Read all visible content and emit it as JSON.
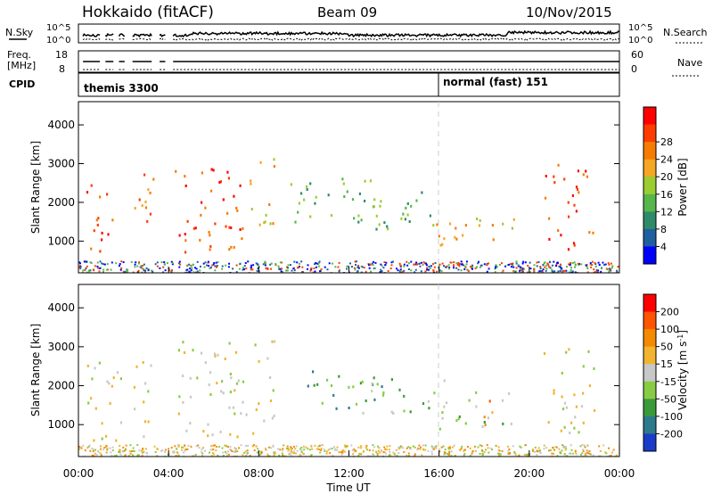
{
  "header": {
    "station": "Hokkaido (fitACF)",
    "beam": "Beam 09",
    "date": "10/Nov/2015"
  },
  "panels": {
    "nsky": {
      "left_label": "N.Sky",
      "right_label": "N.Search",
      "left_ticks": [
        "10^5",
        "10^0"
      ],
      "right_ticks": [
        "10^5",
        "10^0"
      ]
    },
    "freq": {
      "left_label_1": "Freq.",
      "left_label_2": "[MHz]",
      "right_label": "Nave",
      "left_ticks": [
        "18",
        "8"
      ],
      "right_ticks": [
        "60",
        "0"
      ]
    },
    "cpid": {
      "label": "CPID",
      "modes": [
        {
          "name": "themis 3300",
          "start_hour": 0
        },
        {
          "name": "normal (fast) 151",
          "start_hour": 16
        }
      ]
    }
  },
  "chart_data": [
    {
      "type": "heatmap",
      "name": "power",
      "ylabel": "Slant Range [km]",
      "xlim": [
        0,
        24
      ],
      "ylim": [
        180,
        4600
      ],
      "yticks": [
        "1000",
        "2000",
        "3000",
        "4000"
      ],
      "colorbar": {
        "label": "Power [dB]",
        "ticks": [
          "4",
          "8",
          "12",
          "16",
          "20",
          "24",
          "28"
        ],
        "colors": [
          "#0000ff",
          "#1e5fa0",
          "#2e8b6a",
          "#56b64a",
          "#9acd32",
          "#f5a623",
          "#f57c00",
          "#ff3c00",
          "#ff0000"
        ]
      },
      "regions": [
        {
          "x": [
            0.3,
            1.6
          ],
          "y": [
            700,
            2600
          ],
          "level": 7
        },
        {
          "x": [
            2.4,
            3.3
          ],
          "y": [
            600,
            2800
          ],
          "level": 6
        },
        {
          "x": [
            4.2,
            7.5
          ],
          "y": [
            700,
            3000
          ],
          "level": 7
        },
        {
          "x": [
            7.5,
            8.7
          ],
          "y": [
            1300,
            3200
          ],
          "level": 5
        },
        {
          "x": [
            9.2,
            13.5
          ],
          "y": [
            1500,
            2700
          ],
          "level": 3
        },
        {
          "x": [
            12.5,
            16.2
          ],
          "y": [
            1300,
            2300
          ],
          "level": 3
        },
        {
          "x": [
            15.8,
            19.3
          ],
          "y": [
            900,
            1900
          ],
          "level": 5
        },
        {
          "x": [
            20.6,
            22.8
          ],
          "y": [
            800,
            3000
          ],
          "level": 7
        }
      ]
    },
    {
      "type": "heatmap",
      "name": "velocity",
      "ylabel": "Slant Range [km]",
      "xlabel": "Time UT",
      "xlim": [
        0,
        24
      ],
      "ylim": [
        180,
        4600
      ],
      "yticks": [
        "1000",
        "2000",
        "3000",
        "4000"
      ],
      "xticks": [
        "00:00",
        "04:00",
        "08:00",
        "12:00",
        "16:00",
        "20:00",
        "00:00"
      ],
      "colorbar": {
        "label": "Velocity [m s^-1]",
        "ticks": [
          "200",
          "100",
          "50",
          "15",
          "-15",
          "-50",
          "-100",
          "-200"
        ],
        "colors": [
          "#1a3cc8",
          "#2d7a8c",
          "#3a9a3a",
          "#88cc44",
          "#c8c8c8",
          "#f2b330",
          "#f58a00",
          "#ff5500",
          "#ff0000"
        ]
      },
      "regions": [
        {
          "x": [
            0.3,
            2.0
          ],
          "y": [
            600,
            2700
          ],
          "level": 4
        },
        {
          "x": [
            2.4,
            3.3
          ],
          "y": [
            600,
            2800
          ],
          "level": 4
        },
        {
          "x": [
            4.2,
            8.7
          ],
          "y": [
            700,
            3200
          ],
          "level": 4
        },
        {
          "x": [
            9.5,
            13.5
          ],
          "y": [
            1400,
            2400
          ],
          "level": 2
        },
        {
          "x": [
            12.5,
            16.2
          ],
          "y": [
            1300,
            2200
          ],
          "level": 3
        },
        {
          "x": [
            16.0,
            19.2
          ],
          "y": [
            900,
            1900
          ],
          "level": 3
        },
        {
          "x": [
            17.6,
            18.5
          ],
          "y": [
            900,
            1700
          ],
          "level": 6
        },
        {
          "x": [
            20.6,
            22.9
          ],
          "y": [
            800,
            3000
          ],
          "level": 4
        }
      ]
    }
  ]
}
